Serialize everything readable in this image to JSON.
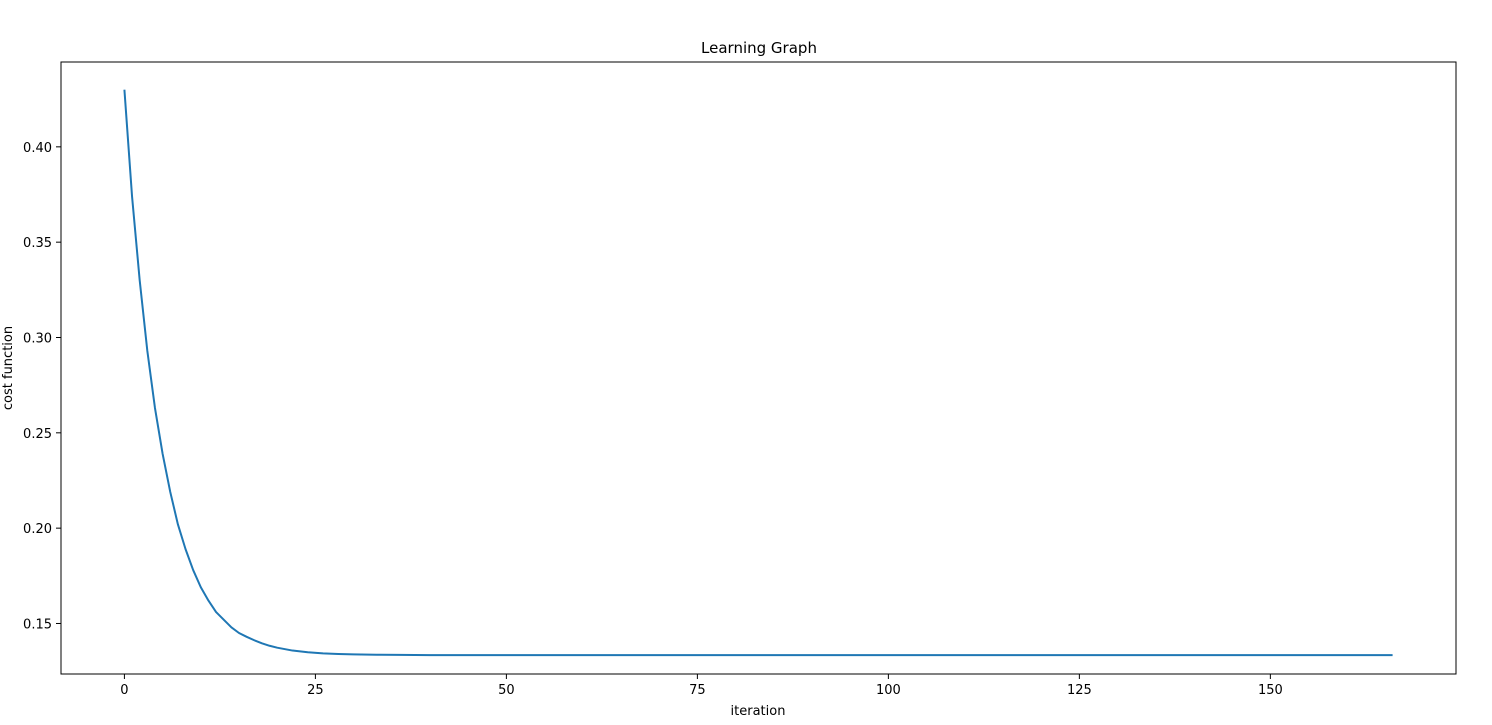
{
  "chart_data": {
    "type": "line",
    "title": "Learning Graph",
    "xlabel": "iteration",
    "ylabel": "cost function",
    "xlim": [
      -8.3,
      174.3
    ],
    "ylim": [
      0.1235,
      0.4445
    ],
    "x_ticks": [
      0,
      25,
      50,
      75,
      100,
      125,
      150
    ],
    "y_ticks": [
      0.15,
      0.2,
      0.25,
      0.3,
      0.35,
      0.4
    ],
    "y_tick_labels": [
      "0.15",
      "0.20",
      "0.25",
      "0.30",
      "0.35",
      "0.40"
    ],
    "grid": false,
    "line_color": "#1f77b4",
    "series": [
      {
        "x": [
          0,
          1,
          2,
          3,
          4,
          5,
          6,
          7,
          8,
          9,
          10,
          11,
          12,
          13,
          14,
          15,
          16,
          17,
          18,
          19,
          20,
          22,
          24,
          26,
          28,
          30,
          33,
          36,
          40,
          45,
          50,
          60,
          70,
          80,
          90,
          100,
          110,
          120,
          130,
          140,
          150,
          160,
          166
        ],
        "y": [
          0.43,
          0.374,
          0.33,
          0.293,
          0.263,
          0.239,
          0.219,
          0.202,
          0.189,
          0.178,
          0.169,
          0.162,
          0.156,
          0.152,
          0.148,
          0.145,
          0.143,
          0.1412,
          0.1396,
          0.1383,
          0.1373,
          0.1358,
          0.1349,
          0.1343,
          0.134,
          0.1338,
          0.1336,
          0.1335,
          0.1334,
          0.1334,
          0.1334,
          0.1334,
          0.1334,
          0.1334,
          0.1334,
          0.1334,
          0.1334,
          0.1334,
          0.1334,
          0.1334,
          0.1334,
          0.1334,
          0.1334
        ]
      }
    ]
  }
}
